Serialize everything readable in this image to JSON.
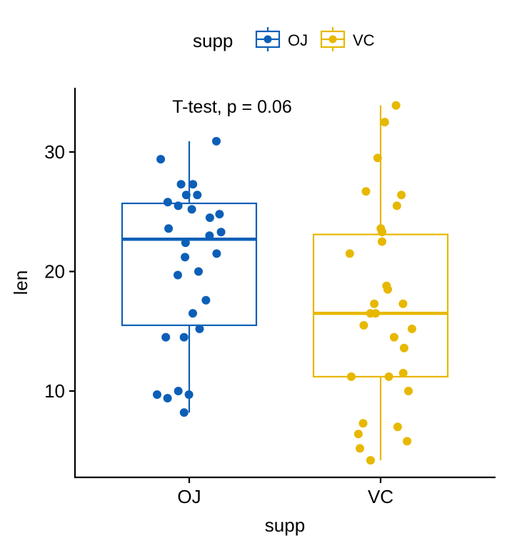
{
  "chart_data": {
    "type": "boxplot",
    "title": "",
    "xlabel": "supp",
    "ylabel": "len",
    "categories": [
      "OJ",
      "VC"
    ],
    "ylim": [
      3,
      35
    ],
    "yticks": [
      10,
      20,
      30
    ],
    "annotation": "T-test, p = 0.06",
    "legend": {
      "title": "supp",
      "position": "top",
      "items": [
        {
          "label": "OJ",
          "color": "#0C5FB7"
        },
        {
          "label": "VC",
          "color": "#E7B800"
        }
      ]
    },
    "series": [
      {
        "name": "OJ",
        "color": "#0C5FB7",
        "box": {
          "whisker_low": 8.2,
          "q1": 15.5,
          "median": 22.7,
          "q3": 25.7,
          "whisker_high": 30.9
        },
        "points": [
          30.9,
          29.4,
          27.3,
          27.3,
          26.4,
          26.4,
          25.8,
          25.5,
          25.2,
          24.8,
          24.5,
          23.6,
          23.3,
          23.0,
          22.4,
          21.5,
          21.2,
          20.0,
          19.7,
          17.6,
          16.5,
          15.2,
          14.5,
          14.5,
          10.0,
          9.7,
          9.7,
          9.4,
          8.2
        ]
      },
      {
        "name": "VC",
        "color": "#E7B800",
        "box": {
          "whisker_low": 4.2,
          "q1": 11.2,
          "median": 16.5,
          "q3": 23.1,
          "whisker_high": 33.9
        },
        "points": [
          33.9,
          32.5,
          29.5,
          26.7,
          26.4,
          25.5,
          23.6,
          23.3,
          22.5,
          21.5,
          18.8,
          18.5,
          17.3,
          17.3,
          16.5,
          16.5,
          15.5,
          15.2,
          14.5,
          13.6,
          11.5,
          11.2,
          11.2,
          10.0,
          7.3,
          7.0,
          6.4,
          5.8,
          5.2,
          4.2
        ]
      }
    ]
  }
}
